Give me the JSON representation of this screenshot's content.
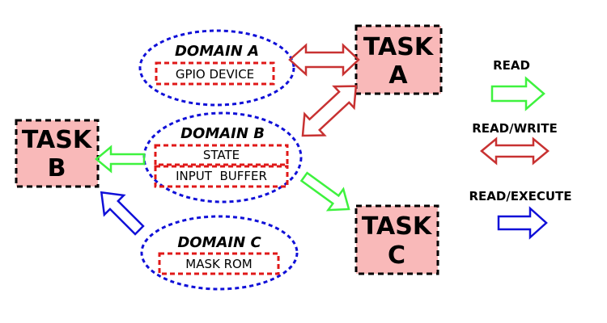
{
  "colors": {
    "task_fill": "#f9b9b9",
    "task_border": "#000000",
    "domain_border": "#1010d8",
    "resource_border": "#e01818",
    "read": "#3ef23e",
    "read_write": "#c83232",
    "read_execute": "#1010d8"
  },
  "tasks": {
    "a": {
      "name": "TASK",
      "letter": "A"
    },
    "b": {
      "name": "TASK",
      "letter": "B"
    },
    "c": {
      "name": "TASK",
      "letter": "C"
    }
  },
  "domains": {
    "a": {
      "title": "DOMAIN A",
      "resources": [
        "GPIO DEVICE"
      ]
    },
    "b": {
      "title": "DOMAIN B",
      "resources": [
        "STATE",
        "INPUT  BUFFER"
      ]
    },
    "c": {
      "title": "DOMAIN C",
      "resources": [
        "MASK ROM"
      ]
    }
  },
  "legend": {
    "read": "READ",
    "read_write": "READ/WRITE",
    "read_execute": "READ/EXECUTE"
  }
}
